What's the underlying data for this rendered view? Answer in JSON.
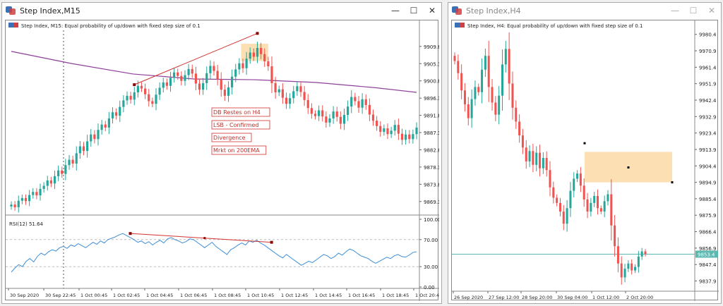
{
  "left_window": {
    "title": "Step Index,M15",
    "buttons": {
      "minimize": "—",
      "maximize": "☐",
      "close": "✕"
    },
    "chart_header": "Step Index, M15:  Equal probability of up/down with fixed step size of 0.1",
    "price_ticks": [
      "9909.8",
      "9905.3",
      "9900.8",
      "9896.3",
      "9891.8",
      "9887.3",
      "9882.8",
      "9878.3",
      "9873.8",
      "9869.3"
    ],
    "time_ticks": [
      "30 Sep 2020",
      "30 Sep 22:45",
      "1 Oct 00:45",
      "1 Oct 02:45",
      "1 Oct 04:45",
      "1 Oct 06:45",
      "1 Oct 08:45",
      "1 Oct 10:45",
      "1 Oct 12:45",
      "1 Oct 14:45",
      "1 Oct 16:45",
      "1 Oct 18:45",
      "1 Oct 20:45"
    ],
    "annotations": [
      "DB Restes on H4",
      "LSB - Confirmed",
      "Divergence",
      "Mrkt on 200EMA"
    ],
    "rsi_label": "RSI(12) 51.64",
    "rsi_ticks": [
      "100.00",
      "70.00",
      "30.00",
      "0.00"
    ]
  },
  "right_window": {
    "title": "Step Index,H4",
    "buttons": {
      "minimize": "—",
      "maximize": "☐",
      "close": "✕"
    },
    "chart_header": "Step Index, H4:  Equal probability of up/down with fixed step size of 0.1",
    "price_ticks": [
      "9980.4",
      "9970.9",
      "9961.4",
      "9951.9",
      "9942.4",
      "9932.9",
      "9923.4",
      "9913.9",
      "9904.4",
      "9894.9",
      "9885.4",
      "9875.9",
      "9866.4",
      "9856.9",
      "9847.4",
      "9837.9"
    ],
    "current_price": "9853.4",
    "time_ticks": [
      "26 Sep 2020",
      "27 Sep 12:00",
      "28 Sep 20:00",
      "30 Sep 04:00",
      "1 Oct 12:00",
      "2 Oct 20:00"
    ]
  },
  "colors": {
    "bull": "#26a69a",
    "bear": "#ef5350",
    "ema": "#8e3f9a",
    "zone": "#fbd9a6",
    "trend": "#d0332f",
    "rsi": "#3d8ed6",
    "price_line": "#5bb8b0"
  },
  "chart_data": [
    {
      "type": "candlestick",
      "title": "Step Index, M15",
      "y_ticks": [
        9909.8,
        9905.3,
        9900.8,
        9896.3,
        9891.8,
        9887.3,
        9882.8,
        9878.3,
        9873.8,
        9869.3
      ],
      "ylim": [
        9866.5,
        9914.0
      ],
      "x_ticks": [
        "30 Sep 2020",
        "30 Sep 22:45",
        "1 Oct 00:45",
        "1 Oct 02:45",
        "1 Oct 04:45",
        "1 Oct 06:45",
        "1 Oct 08:45",
        "1 Oct 10:45",
        "1 Oct 12:45",
        "1 Oct 14:45",
        "1 Oct 16:45",
        "1 Oct 18:45",
        "1 Oct 20:45"
      ],
      "closes": [
        9868.5,
        9867.8,
        9869.5,
        9870.2,
        9869.4,
        9871.0,
        9871.8,
        9870.9,
        9872.6,
        9873.4,
        9874.8,
        9874.0,
        9875.9,
        9877.4,
        9876.5,
        9878.8,
        9880.2,
        9879.2,
        9881.9,
        9883.7,
        9882.5,
        9885.0,
        9886.8,
        9885.6,
        9888.0,
        9889.4,
        9888.6,
        9891.0,
        9892.6,
        9891.7,
        9894.0,
        9895.7,
        9896.9,
        9895.9,
        9897.8,
        9899.5,
        9898.8,
        9897.3,
        9895.5,
        9894.8,
        9897.2,
        9899.0,
        9900.4,
        9899.5,
        9901.6,
        9903.0,
        9902.1,
        9900.8,
        9902.3,
        9903.9,
        9902.7,
        9900.1,
        9898.5,
        9900.2,
        9902.8,
        9904.7,
        9903.4,
        9901.2,
        9898.5,
        9896.9,
        9899.1,
        9901.9,
        9903.8,
        9905.4,
        9904.1,
        9906.6,
        9908.2,
        9907.1,
        9909.4,
        9907.8,
        9905.9,
        9904.6,
        9900.2,
        9897.8,
        9898.6,
        9896.4,
        9894.8,
        9896.3,
        9898.1,
        9899.4,
        9897.9,
        9895.8,
        9893.7,
        9892.2,
        9891.6,
        9893.1,
        9891.5,
        9889.9,
        9891.0,
        9892.8,
        9891.4,
        9889.6,
        9891.9,
        9894.1,
        9896.6,
        9895.5,
        9893.8,
        9896.0,
        9894.5,
        9892.0,
        9890.4,
        9889.0,
        9887.5,
        9888.4,
        9886.9,
        9887.8,
        9889.3,
        9887.0,
        9885.4,
        9886.8,
        9885.6,
        9886.9,
        9888.6
      ],
      "ema200": [
        [
          0,
          9908.5
        ],
        [
          0.15,
          9905.3
        ],
        [
          0.3,
          9902.6
        ],
        [
          0.45,
          9901.3
        ],
        [
          0.6,
          9901.1
        ],
        [
          0.75,
          9900.4
        ],
        [
          0.9,
          9899.0
        ],
        [
          1.0,
          9897.8
        ]
      ],
      "rsi": {
        "name": "RSI(12)",
        "current": 51.64,
        "levels": [
          30,
          70
        ],
        "ylim": [
          0,
          100
        ],
        "values": [
          22,
          28,
          33,
          30,
          38,
          42,
          37,
          45,
          50,
          47,
          52,
          55,
          53,
          58,
          60,
          57,
          62,
          60,
          64,
          61,
          58,
          62,
          66,
          63,
          68,
          65,
          70,
          72,
          74,
          77,
          79,
          76,
          73,
          70,
          66,
          68,
          64,
          67,
          62,
          66,
          69,
          65,
          71,
          73,
          70,
          68,
          65,
          67,
          71,
          70,
          66,
          62,
          58,
          62,
          66,
          60,
          56,
          52,
          48,
          55,
          58,
          62,
          65,
          62,
          68,
          66,
          69,
          65,
          62,
          58,
          54,
          50,
          46,
          43,
          48,
          44,
          40,
          36,
          32,
          35,
          38,
          36,
          40,
          44,
          48,
          46,
          42,
          45,
          50,
          47,
          52,
          56,
          54,
          50,
          46,
          44,
          42,
          38,
          35,
          38,
          41,
          44,
          42,
          46,
          48,
          45,
          44,
          47,
          51,
          52
        ]
      }
    },
    {
      "type": "candlestick",
      "title": "Step Index, H4",
      "y_ticks": [
        9980.4,
        9970.9,
        9961.4,
        9951.9,
        9942.4,
        9932.9,
        9923.4,
        9913.9,
        9904.4,
        9894.9,
        9885.4,
        9875.9,
        9866.4,
        9856.9,
        9847.4,
        9837.9
      ],
      "ylim": [
        9832.0,
        9986.0
      ],
      "x_ticks": [
        "26 Sep 2020",
        "27 Sep 12:00",
        "28 Sep 20:00",
        "30 Sep 04:00",
        "1 Oct 12:00",
        "2 Oct 20:00"
      ],
      "current_price": 9853.4,
      "closes": [
        9965.0,
        9958.0,
        9948.0,
        9940.0,
        9932.0,
        9943.0,
        9950.0,
        9947.0,
        9960.0,
        9968.0,
        9950.0,
        9941.0,
        9934.0,
        9945.0,
        9963.0,
        9972.0,
        9952.0,
        9938.0,
        9930.0,
        9922.0,
        9915.0,
        9907.0,
        9913.0,
        9905.0,
        9912.0,
        9903.0,
        9909.0,
        9902.0,
        9892.0,
        9886.0,
        9883.0,
        9878.0,
        9871.0,
        9880.0,
        9890.0,
        9897.0,
        9900.0,
        9893.0,
        9885.0,
        9878.0,
        9883.0,
        9887.0,
        9880.0,
        9878.0,
        9884.0,
        9888.0,
        9870.0,
        9858.0,
        9848.0,
        9840.0,
        9845.0,
        9848.0,
        9844.0,
        9846.0,
        9852.0,
        9855.0,
        9853.4
      ],
      "zone": {
        "x_range": [
          "30 Sep 04:00",
          "2 Oct 20:00"
        ],
        "price_range": [
          9894.9,
          9912.5
        ]
      }
    }
  ]
}
